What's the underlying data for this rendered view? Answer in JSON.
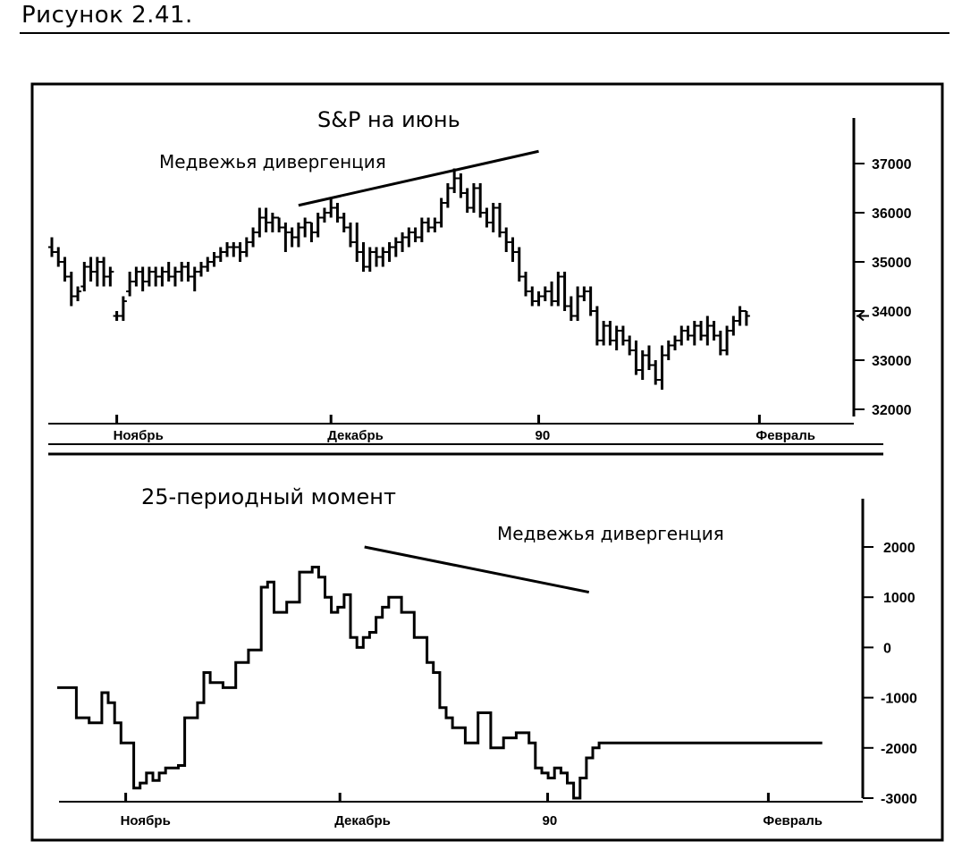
{
  "figure": {
    "caption": "Рисунок 2.41."
  },
  "chart_data": [
    {
      "type": "ohlc",
      "title": "S&P на июнь",
      "annotation": "Медвежья дивергенция",
      "ylim": [
        32000,
        37500
      ],
      "yticks": [
        {
          "value": 37000,
          "label": "37000"
        },
        {
          "value": 36000,
          "label": "36000"
        },
        {
          "value": 35000,
          "label": "35000"
        },
        {
          "value": 34000,
          "label": "34000"
        },
        {
          "value": 33000,
          "label": "33000"
        },
        {
          "value": 32000,
          "label": "32000"
        }
      ],
      "xticks": [
        {
          "index": 10,
          "label": "Ноябрь"
        },
        {
          "index": 43,
          "label": "Декабрь"
        },
        {
          "index": 75,
          "label": "90"
        },
        {
          "index": 109,
          "label": "Февраль"
        }
      ],
      "n_bars": 120,
      "last_value_marker": 33900,
      "divergence_line": {
        "from": {
          "index": 38,
          "value": 36150
        },
        "to": {
          "index": 75,
          "value": 37250
        }
      },
      "bars": [
        [
          35300,
          35500,
          35100,
          35200
        ],
        [
          35200,
          35300,
          34900,
          35000
        ],
        [
          35000,
          35100,
          34600,
          34700
        ],
        [
          34700,
          34800,
          34100,
          34300
        ],
        [
          34300,
          34500,
          34200,
          34400
        ],
        [
          34500,
          35000,
          34400,
          34900
        ],
        [
          34900,
          35100,
          34600,
          34800
        ],
        [
          34800,
          35100,
          34500,
          35000
        ],
        [
          35000,
          35100,
          34500,
          34700
        ],
        [
          34700,
          34900,
          34500,
          34800
        ],
        [
          33900,
          34000,
          33800,
          33900
        ],
        [
          33900,
          34300,
          33800,
          34200
        ],
        [
          34400,
          34800,
          34300,
          34600
        ],
        [
          34600,
          34900,
          34500,
          34800
        ],
        [
          34800,
          34900,
          34400,
          34600
        ],
        [
          34600,
          34900,
          34500,
          34800
        ],
        [
          34800,
          34900,
          34500,
          34700
        ],
        [
          34700,
          34900,
          34500,
          34800
        ],
        [
          34800,
          35000,
          34600,
          34700
        ],
        [
          34700,
          34900,
          34500,
          34800
        ],
        [
          34800,
          35000,
          34600,
          34900
        ],
        [
          34900,
          35000,
          34600,
          34700
        ],
        [
          34700,
          34900,
          34400,
          34800
        ],
        [
          34800,
          35000,
          34700,
          34900
        ],
        [
          34900,
          35100,
          34800,
          35000
        ],
        [
          35000,
          35200,
          34900,
          35100
        ],
        [
          35100,
          35300,
          35000,
          35200
        ],
        [
          35200,
          35400,
          35100,
          35300
        ],
        [
          35300,
          35400,
          35100,
          35300
        ],
        [
          35300,
          35400,
          35000,
          35200
        ],
        [
          35200,
          35500,
          35100,
          35400
        ],
        [
          35400,
          35700,
          35300,
          35600
        ],
        [
          35600,
          36100,
          35500,
          35900
        ],
        [
          35900,
          36100,
          35600,
          35800
        ],
        [
          35800,
          36000,
          35600,
          35900
        ],
        [
          35900,
          35900,
          35600,
          35700
        ],
        [
          35700,
          35800,
          35200,
          35600
        ],
        [
          35600,
          35700,
          35300,
          35500
        ],
        [
          35500,
          35800,
          35300,
          35700
        ],
        [
          35700,
          35900,
          35500,
          35800
        ],
        [
          35800,
          35800,
          35400,
          35600
        ],
        [
          35600,
          36000,
          35500,
          35900
        ],
        [
          35900,
          36100,
          35800,
          36000
        ],
        [
          36000,
          36300,
          35900,
          36100
        ],
        [
          36100,
          36200,
          35800,
          35900
        ],
        [
          35900,
          36000,
          35600,
          35700
        ],
        [
          35700,
          35800,
          35300,
          35400
        ],
        [
          35400,
          35800,
          35000,
          35200
        ],
        [
          35200,
          35400,
          34800,
          34900
        ],
        [
          34900,
          35300,
          34800,
          35200
        ],
        [
          35200,
          35300,
          34900,
          35100
        ],
        [
          35100,
          35300,
          34900,
          35200
        ],
        [
          35200,
          35400,
          35000,
          35300
        ],
        [
          35300,
          35500,
          35100,
          35400
        ],
        [
          35400,
          35600,
          35200,
          35500
        ],
        [
          35500,
          35700,
          35300,
          35600
        ],
        [
          35600,
          35700,
          35400,
          35500
        ],
        [
          35500,
          35900,
          35400,
          35800
        ],
        [
          35800,
          35900,
          35600,
          35700
        ],
        [
          35700,
          35900,
          35600,
          35800
        ],
        [
          35800,
          36300,
          35700,
          36200
        ],
        [
          36200,
          36600,
          36100,
          36500
        ],
        [
          36500,
          36900,
          36400,
          36700
        ],
        [
          36700,
          36800,
          36300,
          36400
        ],
        [
          36400,
          36500,
          36000,
          36100
        ],
        [
          36100,
          36600,
          36000,
          36500
        ],
        [
          36500,
          36600,
          35900,
          36000
        ],
        [
          36000,
          36100,
          35700,
          35800
        ],
        [
          35800,
          36200,
          35600,
          36100
        ],
        [
          36100,
          36200,
          35500,
          35600
        ],
        [
          35600,
          35700,
          35200,
          35400
        ],
        [
          35400,
          35500,
          35000,
          35200
        ],
        [
          35200,
          35300,
          34600,
          34700
        ],
        [
          34700,
          34800,
          34300,
          34400
        ],
        [
          34400,
          34500,
          34100,
          34200
        ],
        [
          34200,
          34400,
          34100,
          34300
        ],
        [
          34300,
          34500,
          34200,
          34400
        ],
        [
          34400,
          34600,
          34100,
          34200
        ],
        [
          34200,
          34800,
          34100,
          34700
        ],
        [
          34700,
          34800,
          34000,
          34100
        ],
        [
          34100,
          34300,
          33800,
          33900
        ],
        [
          33900,
          34500,
          33800,
          34300
        ],
        [
          34300,
          34500,
          34200,
          34400
        ],
        [
          34400,
          34500,
          33900,
          34000
        ],
        [
          34000,
          34100,
          33300,
          33400
        ],
        [
          33400,
          33800,
          33300,
          33700
        ],
        [
          33700,
          33800,
          33300,
          33400
        ],
        [
          33400,
          33700,
          33200,
          33600
        ],
        [
          33600,
          33700,
          33300,
          33400
        ],
        [
          33400,
          33500,
          33100,
          33200
        ],
        [
          33200,
          33400,
          32700,
          32800
        ],
        [
          32800,
          33200,
          32600,
          33100
        ],
        [
          33100,
          33300,
          32800,
          32900
        ],
        [
          32900,
          33000,
          32500,
          32600
        ],
        [
          32600,
          33300,
          32400,
          33100
        ],
        [
          33100,
          33400,
          33000,
          33300
        ],
        [
          33300,
          33500,
          33200,
          33400
        ],
        [
          33400,
          33700,
          33300,
          33600
        ],
        [
          33600,
          33700,
          33400,
          33500
        ],
        [
          33500,
          33800,
          33300,
          33700
        ],
        [
          33700,
          33800,
          33400,
          33500
        ],
        [
          33500,
          33900,
          33300,
          33700
        ],
        [
          33700,
          33800,
          33400,
          33500
        ],
        [
          33500,
          33600,
          33100,
          33200
        ],
        [
          33200,
          33700,
          33100,
          33600
        ],
        [
          33600,
          33900,
          33500,
          33800
        ],
        [
          33800,
          34100,
          33700,
          34000
        ],
        [
          34000,
          34000,
          33700,
          33900
        ]
      ]
    },
    {
      "type": "line",
      "title": "25-периодный момент",
      "annotation": "Медвежья дивергенция",
      "ylim": [
        -3000,
        2800
      ],
      "yticks": [
        {
          "value": 2000,
          "label": "2000"
        },
        {
          "value": 1000,
          "label": "1000"
        },
        {
          "value": 0,
          "label": "0"
        },
        {
          "value": -1000,
          "label": "-1000"
        },
        {
          "value": -2000,
          "label": "-2000"
        },
        {
          "value": -3000,
          "label": "-3000"
        }
      ],
      "xticks": [
        {
          "index": 10,
          "label": "Ноябрь"
        },
        {
          "index": 43,
          "label": "Декабрь"
        },
        {
          "index": 75,
          "label": "90"
        },
        {
          "index": 109,
          "label": "Февраль"
        }
      ],
      "divergence_line": {
        "from": {
          "index": 51,
          "value": 2000
        },
        "to": {
          "index": 82,
          "value": 1100
        }
      },
      "x": [
        0,
        3,
        5,
        7,
        8,
        9,
        10,
        12,
        13,
        14,
        15,
        16,
        17,
        19,
        20,
        22,
        23,
        24,
        26,
        28,
        30,
        32,
        33,
        34,
        36,
        38,
        40,
        41,
        42,
        43,
        44,
        45,
        46,
        47,
        48,
        49,
        50,
        51,
        52,
        54,
        56,
        58,
        59,
        60,
        61,
        62,
        64,
        66,
        68,
        70,
        72,
        74,
        75,
        76,
        77,
        78,
        79,
        80,
        81,
        82,
        83,
        84,
        85,
        86,
        88,
        90,
        92,
        94,
        96,
        98,
        100,
        101,
        102,
        104,
        106,
        108,
        110,
        112,
        113,
        114,
        116,
        118,
        120,
        121,
        122
      ],
      "values": [
        -800,
        -1400,
        -1500,
        -900,
        -1100,
        -1500,
        -1900,
        -2800,
        -2700,
        -2500,
        -2650,
        -2500,
        -2400,
        -2350,
        -1400,
        -1100,
        -500,
        -700,
        -800,
        -300,
        -50,
        1200,
        1300,
        700,
        900,
        1500,
        1600,
        1400,
        1000,
        700,
        800,
        1050,
        200,
        0,
        200,
        300,
        600,
        800,
        1000,
        700,
        200,
        -300,
        -500,
        -1200,
        -1400,
        -1600,
        -1900,
        -1300,
        -2000,
        -1800,
        -1700,
        -1900,
        -2400,
        -2500,
        -2600,
        -2400,
        -2500,
        -2700,
        -3000,
        -2600,
        -2200,
        -2000,
        -1900,
        -1900,
        -1900,
        -1900,
        -1900,
        -1900,
        -1900,
        -1900,
        -1900,
        -1900,
        -1900,
        -1900,
        -1900,
        -1900,
        -1900,
        -1900,
        -1900,
        -1900,
        -1900,
        -1900,
        -1900,
        -1900,
        -1900
      ]
    }
  ]
}
